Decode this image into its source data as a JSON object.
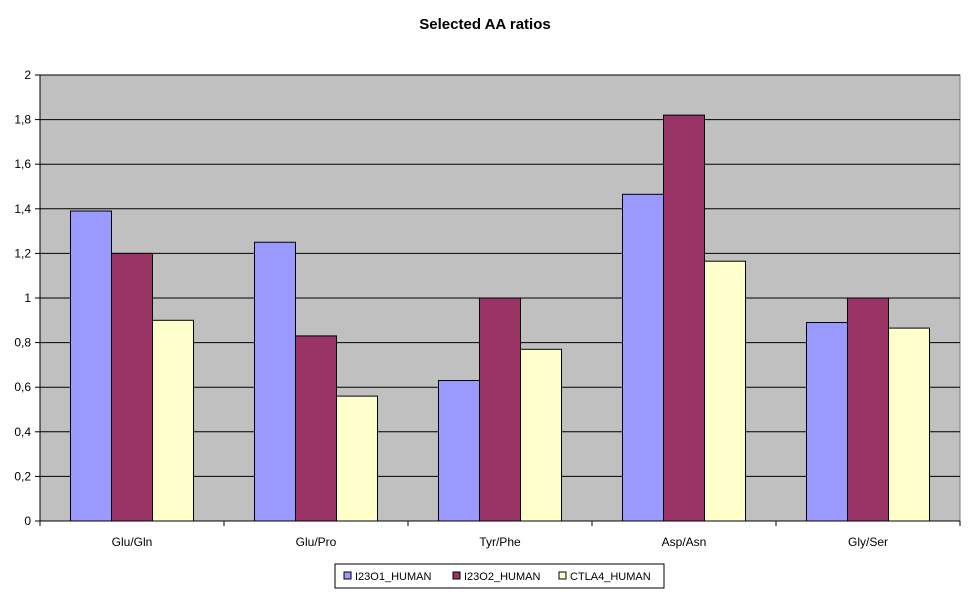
{
  "chart_data": {
    "type": "bar",
    "title": "Selected AA ratios",
    "xlabel": "",
    "ylabel": "",
    "categories": [
      "Glu/Gln",
      "Glu/Pro",
      "Tyr/Phe",
      "Asp/Asn",
      "Gly/Ser"
    ],
    "series": [
      {
        "name": "I23O1_HUMAN",
        "color": "#9999ff",
        "values": [
          1.39,
          1.25,
          0.63,
          1.465,
          0.89
        ]
      },
      {
        "name": "I23O2_HUMAN",
        "color": "#993366",
        "values": [
          1.2,
          0.83,
          1.0,
          1.82,
          1.0
        ]
      },
      {
        "name": "CTLA4_HUMAN",
        "color": "#ffffcc",
        "values": [
          0.9,
          0.56,
          0.77,
          1.165,
          0.865
        ]
      }
    ],
    "ylim": [
      0,
      2
    ],
    "yticks": [
      0,
      0.2,
      0.4,
      0.6,
      0.8,
      1,
      1.2,
      1.4,
      1.6,
      1.8,
      2
    ],
    "ytick_labels": [
      "0",
      "0,2",
      "0,4",
      "0,6",
      "0,8",
      "1",
      "1,2",
      "1,4",
      "1,6",
      "1,8",
      "2"
    ],
    "grid": true,
    "plot_background": "#c0c0c0",
    "legend_position": "bottom"
  }
}
